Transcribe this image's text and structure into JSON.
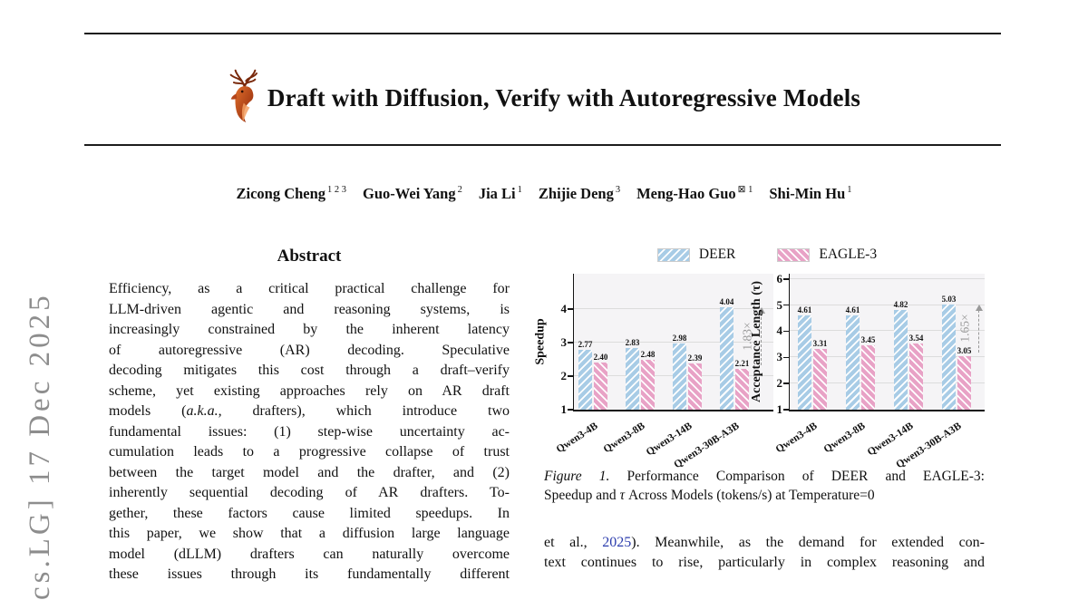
{
  "stamp": {
    "text": "cs.LG] 17 Dec 2025"
  },
  "header": {
    "title": "Draft with Diffusion, Verify with Autoregressive Models"
  },
  "authors": [
    {
      "name": "Zicong Cheng",
      "sup": "1 2 3"
    },
    {
      "name": "Guo-Wei Yang",
      "sup": "2"
    },
    {
      "name": "Jia Li",
      "sup": "1"
    },
    {
      "name": "Zhijie Deng",
      "sup": "3"
    },
    {
      "name": "Meng-Hao Guo",
      "sup": "⊠ 1"
    },
    {
      "name": "Shi-Min Hu",
      "sup": "1"
    }
  ],
  "abstract": {
    "heading": "Abstract",
    "lines": [
      [
        {
          "t": "Efficiency, as a critical practical challenge for"
        }
      ],
      [
        {
          "t": "LLM-driven agentic and reasoning systems, is"
        }
      ],
      [
        {
          "t": "increasingly constrained by the inherent latency"
        }
      ],
      [
        {
          "t": "of autoregressive (AR) decoding. Speculative"
        }
      ],
      [
        {
          "t": "decoding mitigates this cost through a draft–verify"
        }
      ],
      [
        {
          "t": "scheme, yet existing approaches rely on AR draft"
        }
      ],
      [
        {
          "t": "models ("
        },
        {
          "t": "a.k.a.,",
          "s": "i"
        },
        {
          "t": " drafters), which introduce two"
        }
      ],
      [
        {
          "t": "fundamental issues: (1) step-wise uncertainty ac-"
        }
      ],
      [
        {
          "t": "cumulation leads to a progressive collapse of trust"
        }
      ],
      [
        {
          "t": "between the target model and the drafter, and (2)"
        }
      ],
      [
        {
          "t": "inherently sequential decoding of AR drafters. To-"
        }
      ],
      [
        {
          "t": "gether, these factors cause limited speedups. In"
        }
      ],
      [
        {
          "t": "this paper, we show that a diffusion large language"
        }
      ],
      [
        {
          "t": "model (dLLM) drafters can naturally overcome"
        }
      ],
      [
        {
          "t": "these issues through its fundamentally different"
        }
      ]
    ]
  },
  "figure": {
    "legend": [
      "DEER",
      "EAGLE-3"
    ],
    "caption_lines": [
      [
        {
          "t": "Figure 1.",
          "s": "i"
        },
        {
          "t": "  Performance Comparison of DEER and EAGLE-3:"
        }
      ],
      [
        {
          "t": "Speedup and "
        },
        {
          "t": "τ",
          "s": "i"
        },
        {
          "t": " Across Models (tokens/s) at Temperature=0"
        }
      ]
    ]
  },
  "chart_data": [
    {
      "type": "bar",
      "ylabel": "Speedup",
      "categories": [
        "Qwen3-4B",
        "Qwen3-8B",
        "Qwen3-14B",
        "Qwen3-30B-A3B"
      ],
      "series": [
        {
          "name": "DEER",
          "values": [
            2.77,
            2.83,
            2.98,
            4.04
          ]
        },
        {
          "name": "EAGLE-3",
          "values": [
            2.4,
            2.48,
            2.39,
            2.21
          ]
        }
      ],
      "yticks": [
        1,
        2,
        3,
        4
      ],
      "ylim": [
        1,
        5
      ],
      "grid": true,
      "legend_position": "top",
      "annotation": "1.83×"
    },
    {
      "type": "bar",
      "ylabel": "Acceptance Length (τ)",
      "categories": [
        "Qwen3-4B",
        "Qwen3-8B",
        "Qwen3-14B",
        "Qwen3-30B-A3B"
      ],
      "series": [
        {
          "name": "DEER",
          "values": [
            4.61,
            4.61,
            4.82,
            5.03
          ]
        },
        {
          "name": "EAGLE-3",
          "values": [
            3.31,
            3.45,
            3.54,
            3.05
          ]
        }
      ],
      "yticks": [
        1,
        2,
        3,
        4,
        5,
        6
      ],
      "ylim": [
        1,
        6
      ],
      "grid": true,
      "legend_position": "top",
      "annotation": "1.65×"
    }
  ],
  "right_column": {
    "lines": [
      [
        {
          "t": "et al., "
        },
        {
          "t": "2025",
          "s": "cite"
        },
        {
          "t": "). Meanwhile, as the demand for extended con-"
        }
      ],
      [
        {
          "t": "text continues to rise, particularly in complex reasoning and"
        }
      ]
    ]
  },
  "colors": {
    "deer_blue": "#a8cce6",
    "eagle_pink": "#e8a2c6",
    "citation_blue": "#2b3cad",
    "annotation_gray": "#999999"
  }
}
